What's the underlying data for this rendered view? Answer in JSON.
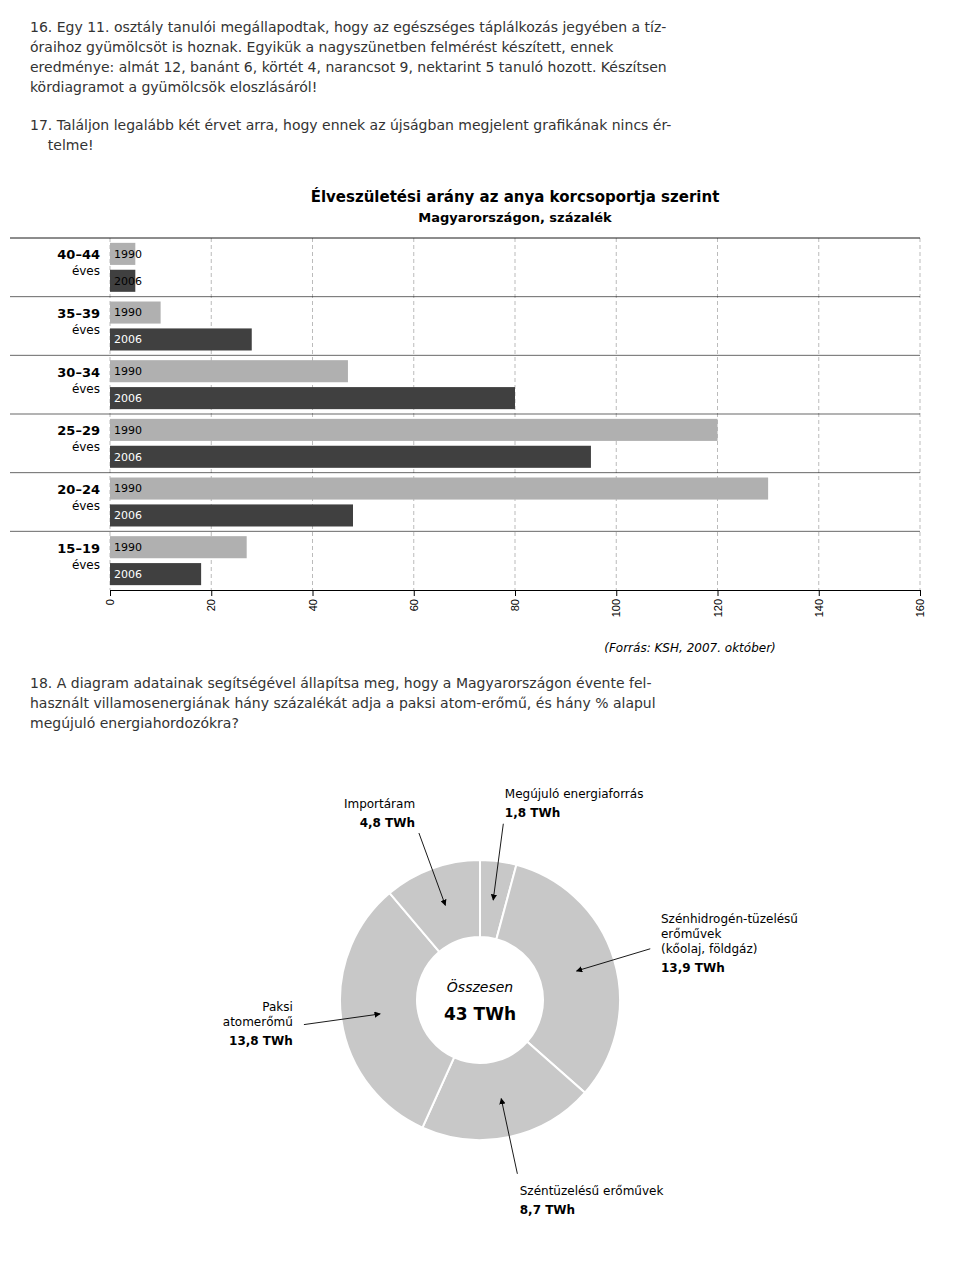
{
  "chart_data": [
    {
      "type": "bar",
      "orientation": "horizontal",
      "title": "Élveszületési arány az anya korcsoportja szerint",
      "subtitle": "Magyarországon, százalék",
      "annotations": [
        "16. Egy 11. osztály tanulói megállapodtak, hogy az egészséges táplálkozás jegyében a tíz-\nóraihoz gyümölcsöt is hoznak. Egyikük a nagyszünetben felmérést készített, ennek\neredménye: almát 12, banánt 6, körtét 4, narancsot 9, nektarint 5 tanuló hozott. Készítsen\nkördiagramot a gyümölcsök eloszlásáról!",
        "17. Találjon legalább két érvet arra, hogy ennek az újságban megjelent grafikának nincs ér-\n    telme!",
        "(Forrás: KSH, 2007. október)"
      ],
      "categories": [
        "15–19\néves",
        "20–24\néves",
        "25–29\néves",
        "30–34\néves",
        "35–39\néves",
        "40–44\néves"
      ],
      "series": [
        {
          "name": "1990",
          "color": "#b0b0b0",
          "values": [
            27,
            130,
            120,
            47,
            10,
            5
          ]
        },
        {
          "name": "2006",
          "color": "#404040",
          "values": [
            18,
            48,
            95,
            80,
            28,
            5
          ]
        }
      ],
      "xlim": [
        0,
        160
      ],
      "xticks": [
        0,
        20,
        40,
        60,
        80,
        100,
        120,
        140,
        160
      ],
      "grid": true
    },
    {
      "type": "donut",
      "annotations": [
        "18. A diagram adatainak segítségével állapítsa meg, hogy a Magyarországon évente fel-\nhasznált villamosenergiának hány százalékát adja a paksi atom-erőmű, és hány % alapul\nmegújuló energiahordozókra?",
        "Összesen",
        "43 TWh"
      ],
      "categories": [
        "Megújuló energiaforrás",
        "Szénhidrogén-tüzelésű\nerőművek\n(kőolaj, földgáz)",
        "Széntüzelésű erőművek",
        "Paksi\natomerőmű",
        "Importáram"
      ],
      "values": [
        1.8,
        13.9,
        8.7,
        13.8,
        4.8
      ],
      "value_labels": [
        "1,8 TWh",
        "13,9 TWh",
        "8,7 TWh",
        "13,8 TWh",
        "4,8 TWh"
      ],
      "data_labels": true,
      "color": "#c8c8c8"
    }
  ]
}
